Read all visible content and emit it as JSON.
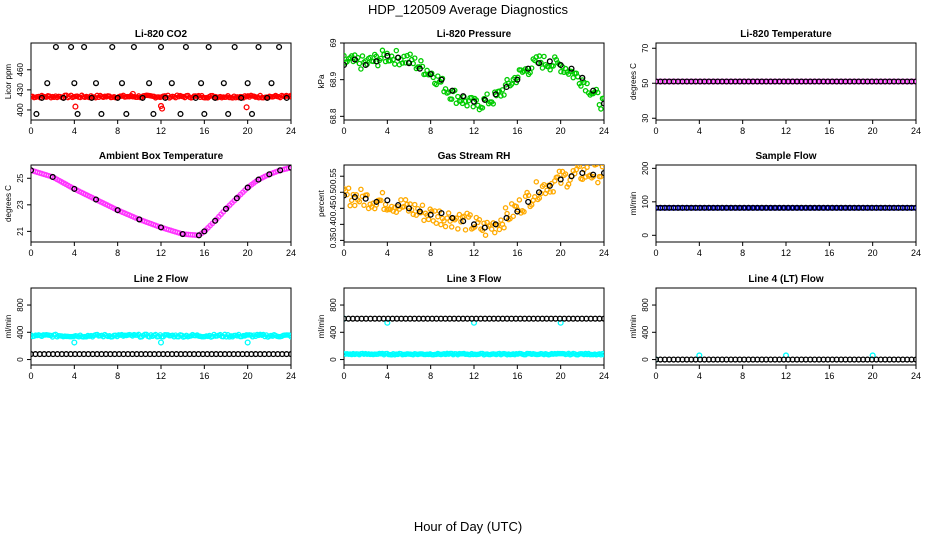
{
  "figure": {
    "title": "HDP_120509  Average Diagnostics",
    "xlabel": "Hour of Day (UTC)"
  },
  "chart_data": [
    {
      "type": "scatter",
      "title": "Li-820 CO2",
      "ylabel": "Licor ppm",
      "xlim": [
        0,
        24
      ],
      "ylim": [
        385,
        500
      ],
      "xticks": [
        0,
        4,
        8,
        12,
        16,
        20,
        24
      ],
      "yticks": [
        400,
        430,
        460
      ],
      "series": [
        {
          "color": "#ff0000",
          "kind": "band",
          "x_range": [
            0,
            24
          ],
          "center": 420,
          "spread": 2
        },
        {
          "color": "#ff0000",
          "kind": "points",
          "x": [
            4.1,
            9.4,
            12.0,
            12.1,
            19.9
          ],
          "y": [
            405,
            424,
            406,
            402,
            404
          ]
        },
        {
          "color": "#000000",
          "kind": "points",
          "x": [
            0.5,
            1.0,
            1.5,
            2.3,
            3.0,
            3.7,
            4.0,
            4.3,
            4.9,
            5.6,
            6.0,
            6.5,
            7.5,
            8.0,
            8.4,
            8.8,
            9.5,
            10.3,
            10.9,
            11.3,
            12.0,
            12.4,
            13.0,
            13.8,
            14.3,
            15.2,
            15.7,
            16.0,
            16.4,
            17.0,
            17.8,
            18.2,
            18.8,
            19.4,
            20.0,
            20.4,
            21.0,
            21.8,
            22.2,
            22.9,
            23.6
          ],
          "y": [
            394,
            418,
            440,
            494,
            418,
            494,
            440,
            394,
            494,
            418,
            440,
            394,
            494,
            418,
            440,
            394,
            494,
            418,
            440,
            394,
            494,
            418,
            440,
            394,
            494,
            418,
            440,
            394,
            494,
            418,
            440,
            394,
            494,
            418,
            440,
            394,
            494,
            418,
            440,
            494,
            418
          ]
        }
      ]
    },
    {
      "type": "scatter",
      "title": "Li-820 Pressure",
      "ylabel": "kPa",
      "xlim": [
        0,
        24
      ],
      "ylim": [
        68.79,
        69.0
      ],
      "xticks": [
        0,
        4,
        8,
        12,
        16,
        20,
        24
      ],
      "yticks": [
        68.8,
        68.9,
        69.0
      ],
      "series": [
        {
          "color": "#00cc00",
          "kind": "band",
          "x": [
            0,
            2,
            4,
            6,
            8,
            10,
            12,
            14,
            16,
            18,
            20,
            22,
            24
          ],
          "y": [
            68.95,
            68.945,
            68.965,
            68.955,
            68.92,
            68.86,
            68.83,
            68.85,
            68.91,
            68.95,
            68.94,
            68.9,
            68.83
          ],
          "spread": 0.02
        },
        {
          "color": "#000000",
          "kind": "points",
          "x": [
            0,
            1,
            2,
            3,
            4,
            5,
            6,
            7,
            8,
            9,
            10,
            11,
            12,
            13,
            14,
            15,
            16,
            17,
            18,
            19,
            20,
            21,
            22,
            23,
            24
          ],
          "y": [
            68.94,
            68.955,
            68.94,
            68.95,
            68.965,
            68.96,
            68.945,
            68.93,
            68.915,
            68.9,
            68.87,
            68.855,
            68.84,
            68.845,
            68.86,
            68.88,
            68.9,
            68.93,
            68.945,
            68.95,
            68.94,
            68.93,
            68.905,
            68.87,
            68.835
          ]
        }
      ]
    },
    {
      "type": "scatter",
      "title": "Li-820 Temperature",
      "ylabel": "degrees C",
      "xlim": [
        0,
        24
      ],
      "ylim": [
        29,
        73
      ],
      "xticks": [
        0,
        4,
        8,
        12,
        16,
        20,
        24
      ],
      "yticks": [
        30,
        50,
        70
      ],
      "series": [
        {
          "color": "#ff33ff",
          "kind": "line",
          "x": [
            0,
            24
          ],
          "y": [
            51,
            51
          ]
        },
        {
          "color": "#000000",
          "kind": "points",
          "x_range": [
            0,
            24
          ],
          "y_const": 51,
          "count": 60
        }
      ]
    },
    {
      "type": "scatter",
      "title": "Ambient Box Temperature",
      "ylabel": "degrees C",
      "xlim": [
        0,
        24
      ],
      "ylim": [
        20.2,
        26.0
      ],
      "xticks": [
        0,
        4,
        8,
        12,
        16,
        20,
        24
      ],
      "yticks": [
        21,
        23,
        25
      ],
      "series": [
        {
          "color": "#ff33ff",
          "kind": "line",
          "x": [
            0,
            2,
            4,
            6,
            8,
            10,
            12,
            14,
            15.5,
            16,
            17,
            18,
            19,
            20,
            21,
            22,
            23,
            24
          ],
          "y": [
            25.6,
            25.1,
            24.2,
            23.4,
            22.6,
            21.9,
            21.3,
            20.8,
            20.7,
            21.0,
            21.8,
            22.7,
            23.5,
            24.3,
            24.9,
            25.3,
            25.6,
            25.8
          ]
        },
        {
          "color": "#000000",
          "kind": "points",
          "x": [
            0,
            2,
            4,
            6,
            8,
            10,
            12,
            14,
            15.5,
            16,
            17,
            18,
            19,
            20,
            21,
            22,
            23,
            24
          ],
          "y": [
            25.6,
            25.1,
            24.2,
            23.4,
            22.6,
            21.9,
            21.3,
            20.8,
            20.7,
            21.0,
            21.8,
            22.7,
            23.5,
            24.3,
            24.9,
            25.3,
            25.6,
            25.8
          ]
        }
      ]
    },
    {
      "type": "scatter",
      "title": "Gas Stream RH",
      "ylabel": "percent",
      "xlim": [
        0,
        24
      ],
      "ylim": [
        0.345,
        0.585
      ],
      "xticks": [
        0,
        4,
        8,
        12,
        16,
        20,
        24
      ],
      "yticks": [
        0.35,
        0.4,
        0.45,
        0.5,
        0.55
      ],
      "series": [
        {
          "color": "#ffaa00",
          "kind": "band",
          "x": [
            0,
            2,
            4,
            6,
            8,
            10,
            12,
            13,
            14,
            16,
            18,
            20,
            22,
            24
          ],
          "y": [
            0.49,
            0.48,
            0.47,
            0.45,
            0.43,
            0.42,
            0.4,
            0.385,
            0.4,
            0.45,
            0.51,
            0.54,
            0.56,
            0.56
          ],
          "spread": 0.03
        },
        {
          "color": "#000000",
          "kind": "points",
          "x": [
            0,
            1,
            2,
            3,
            4,
            5,
            6,
            7,
            8,
            9,
            10,
            11,
            12,
            13,
            14,
            15,
            16,
            17,
            18,
            19,
            20,
            21,
            22,
            23,
            24
          ],
          "y": [
            0.49,
            0.485,
            0.48,
            0.47,
            0.475,
            0.46,
            0.45,
            0.44,
            0.43,
            0.435,
            0.42,
            0.41,
            0.4,
            0.39,
            0.4,
            0.42,
            0.44,
            0.47,
            0.5,
            0.52,
            0.54,
            0.55,
            0.56,
            0.555,
            0.56
          ]
        }
      ]
    },
    {
      "type": "scatter",
      "title": "Sample Flow",
      "ylabel": "ml/min",
      "xlim": [
        0,
        24
      ],
      "ylim": [
        -20,
        210
      ],
      "xticks": [
        0,
        4,
        8,
        12,
        16,
        20,
        24
      ],
      "yticks": [
        0,
        100,
        200
      ],
      "series": [
        {
          "color": "#0000cc",
          "kind": "line",
          "x": [
            0,
            24
          ],
          "y": [
            82,
            82
          ]
        },
        {
          "color": "#000000",
          "kind": "points",
          "x_range": [
            0,
            24
          ],
          "y_const": 82,
          "count": 60
        }
      ]
    },
    {
      "type": "scatter",
      "title": "Line 2 Flow",
      "ylabel": "ml/min",
      "xlim": [
        0,
        24
      ],
      "ylim": [
        -80,
        1050
      ],
      "xticks": [
        0,
        4,
        8,
        12,
        16,
        20,
        24
      ],
      "yticks": [
        0,
        400,
        800
      ],
      "series": [
        {
          "color": "#00ffff",
          "kind": "band",
          "x": [
            0,
            24
          ],
          "y": [
            350,
            350
          ],
          "spread": 20
        },
        {
          "color": "#00ffff",
          "kind": "points",
          "x": [
            4,
            12,
            20
          ],
          "y": [
            250,
            250,
            250
          ]
        },
        {
          "color": "#000000",
          "kind": "points",
          "x_range": [
            0,
            24
          ],
          "y_const": 80,
          "count": 60
        }
      ]
    },
    {
      "type": "scatter",
      "title": "Line 3 Flow",
      "ylabel": "ml/min",
      "xlim": [
        0,
        24
      ],
      "ylim": [
        -80,
        1050
      ],
      "xticks": [
        0,
        4,
        8,
        12,
        16,
        20,
        24
      ],
      "yticks": [
        0,
        400,
        800
      ],
      "series": [
        {
          "color": "#00ffff",
          "kind": "band",
          "x": [
            0,
            24
          ],
          "y": [
            80,
            80
          ],
          "spread": 10
        },
        {
          "color": "#00ffff",
          "kind": "points",
          "x": [
            0,
            4,
            12,
            20
          ],
          "y": [
            600,
            540,
            540,
            540
          ]
        },
        {
          "color": "#000000",
          "kind": "points",
          "x_range": [
            0,
            24
          ],
          "y_const": 600,
          "count": 60
        }
      ]
    },
    {
      "type": "scatter",
      "title": "Line 4 (LT) Flow",
      "ylabel": "ml/min",
      "xlim": [
        0,
        24
      ],
      "ylim": [
        -80,
        1050
      ],
      "xticks": [
        0,
        4,
        8,
        12,
        16,
        20,
        24
      ],
      "yticks": [
        0,
        400,
        800
      ],
      "series": [
        {
          "color": "#00ffff",
          "kind": "points",
          "x": [
            0,
            4,
            12,
            20
          ],
          "y": [
            0,
            60,
            60,
            60
          ]
        },
        {
          "color": "#000000",
          "kind": "points",
          "x_range": [
            0,
            24
          ],
          "y_const": 0,
          "count": 60
        }
      ]
    }
  ]
}
